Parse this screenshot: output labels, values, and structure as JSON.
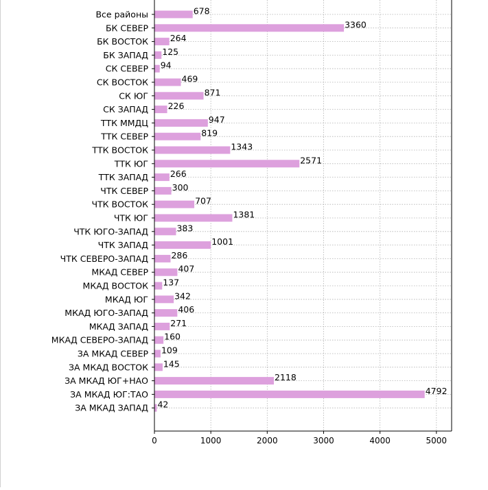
{
  "chart_data": {
    "type": "bar",
    "orientation": "horizontal",
    "title": "",
    "xlabel": "",
    "ylabel": "",
    "xlim": [
      0,
      5270
    ],
    "xticks": [
      0,
      1000,
      2000,
      3000,
      4000,
      5000
    ],
    "xtick_labels": [
      "0",
      "1000",
      "2000",
      "3000",
      "4000",
      "5000"
    ],
    "grid": true,
    "bar_color": "#dda0dd",
    "categories": [
      "Все районы",
      "БК СЕВЕР",
      "БК ВОСТОК",
      "БК ЗАПАД",
      "СК СЕВЕР",
      "СК ВОСТОК",
      "СК ЮГ",
      "СК ЗАПАД",
      "ТТК ММДЦ",
      "ТТК СЕВЕР",
      "ТТК ВОСТОК",
      "ТТК ЮГ",
      "ТТК ЗАПАД",
      "ЧТК СЕВЕР",
      "ЧТК ВОСТОК",
      "ЧТК ЮГ",
      "ЧТК ЮГО-ЗАПАД",
      "ЧТК ЗАПАД",
      "ЧТК СЕВЕРО-ЗАПАД",
      "МКАД СЕВЕР",
      "МКАД ВОСТОК",
      "МКАД ЮГ",
      "МКАД ЮГО-ЗАПАД",
      "МКАД ЗАПАД",
      "МКАД СЕВЕРО-ЗАПАД",
      "ЗА МКАД СЕВЕР",
      "ЗА МКАД ВОСТОК",
      "ЗА МКАД ЮГ+НАО",
      "ЗА МКАД ЮГ:ТАО",
      "ЗА МКАД ЗАПАД"
    ],
    "values": [
      678,
      3360,
      264,
      125,
      94,
      469,
      871,
      226,
      947,
      819,
      1343,
      2571,
      266,
      300,
      707,
      1381,
      383,
      1001,
      286,
      407,
      137,
      342,
      406,
      271,
      160,
      109,
      145,
      2118,
      4792,
      42
    ],
    "value_labels": [
      "678",
      "3360",
      "264",
      "125",
      "94",
      "469",
      "871",
      "226",
      "947",
      "819",
      "1343",
      "2571",
      "266",
      "300",
      "707",
      "1381",
      "383",
      "1001",
      "286",
      "407",
      "137",
      "342",
      "406",
      "271",
      "160",
      "109",
      "145",
      "2118",
      "4792",
      "42"
    ]
  }
}
